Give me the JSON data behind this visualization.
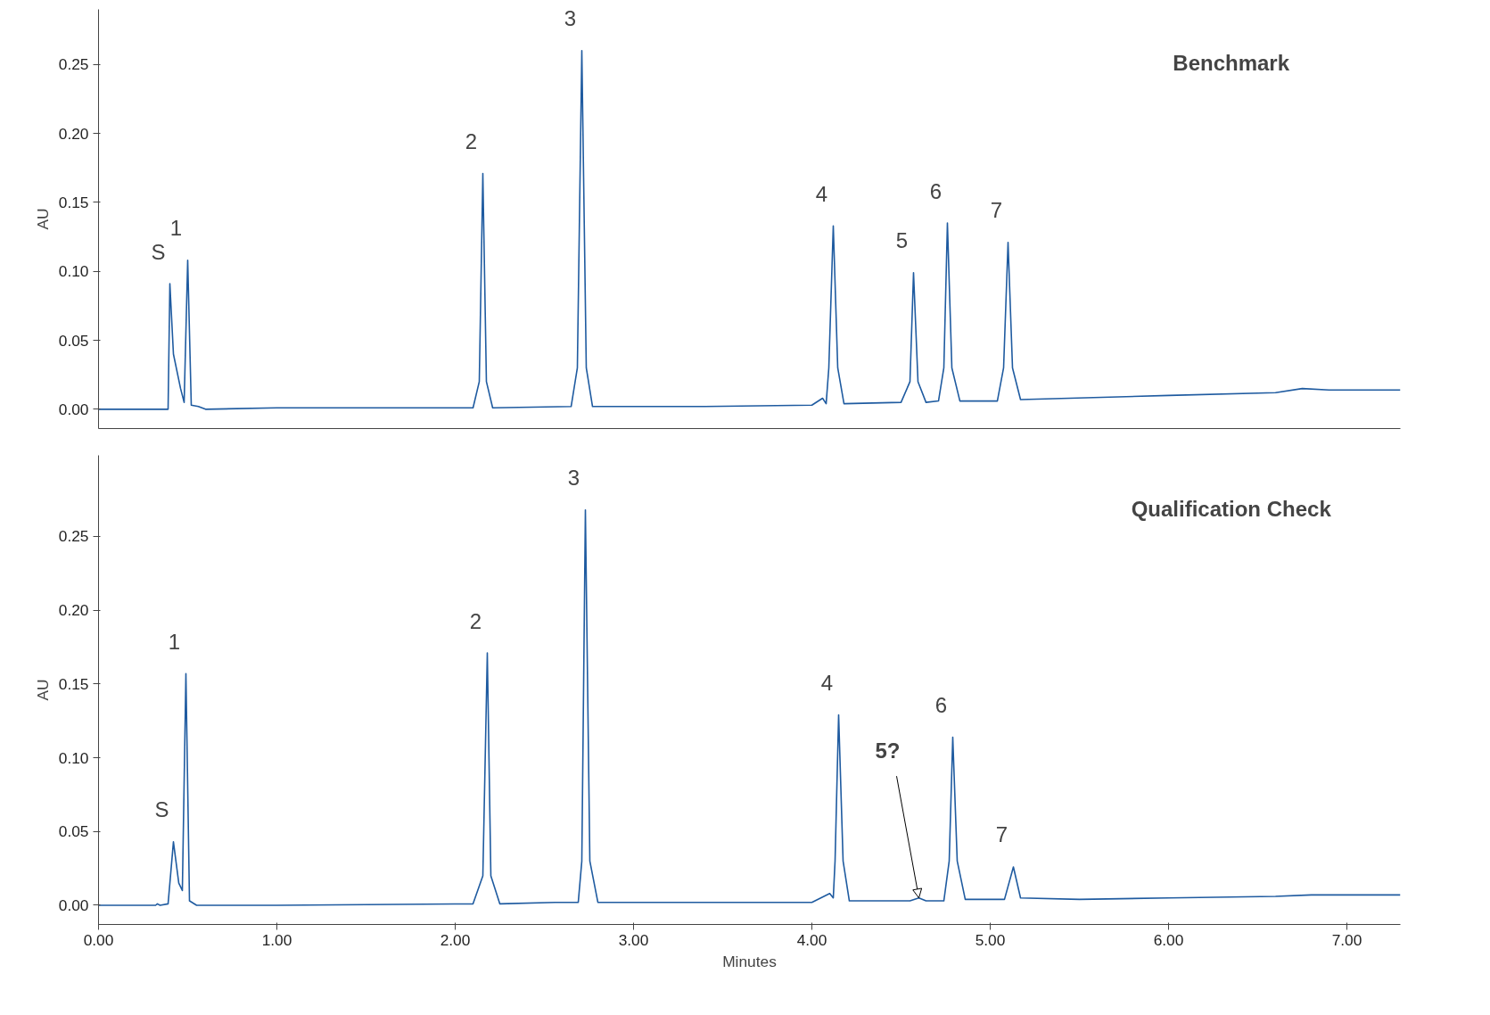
{
  "chart_data": [
    {
      "type": "line",
      "title": "Benchmark",
      "ylabel": "AU",
      "xlim": [
        0,
        7.3
      ],
      "ylim": [
        -0.014,
        0.29
      ],
      "yticks": [
        {
          "value": 0,
          "label": "0.00"
        },
        {
          "value": 0.05,
          "label": "0.05"
        },
        {
          "value": 0.1,
          "label": "0.10"
        },
        {
          "value": 0.15,
          "label": "0.15"
        },
        {
          "value": 0.2,
          "label": "0.20"
        },
        {
          "value": 0.25,
          "label": "0.25"
        }
      ],
      "tick_labels": "y",
      "grid": false,
      "series": [
        {
          "color": "#1f5ba0",
          "x": [
            0,
            0.39,
            0.4,
            0.42,
            0.46,
            0.48,
            0.5,
            0.52,
            0.56,
            0.6,
            1.0,
            2.1,
            2.135,
            2.155,
            2.175,
            2.21,
            2.65,
            2.685,
            2.71,
            2.735,
            2.77,
            3.4,
            4.0,
            4.06,
            4.08,
            4.095,
            4.12,
            4.145,
            4.18,
            4.5,
            4.55,
            4.57,
            4.595,
            4.64,
            4.71,
            4.74,
            4.76,
            4.785,
            4.83,
            5.04,
            5.075,
            5.1,
            5.125,
            5.17,
            6.0,
            6.6,
            6.75,
            6.9,
            7.3
          ],
          "values": [
            0,
            0,
            0.091,
            0.04,
            0.015,
            0.005,
            0.108,
            0.003,
            0.002,
            0,
            0.001,
            0.001,
            0.02,
            0.171,
            0.02,
            0.001,
            0.002,
            0.03,
            0.26,
            0.03,
            0.002,
            0.002,
            0.003,
            0.008,
            0.004,
            0.03,
            0.133,
            0.03,
            0.004,
            0.005,
            0.02,
            0.099,
            0.02,
            0.005,
            0.006,
            0.03,
            0.135,
            0.03,
            0.006,
            0.006,
            0.03,
            0.121,
            0.03,
            0.007,
            0.01,
            0.012,
            0.015,
            0.014,
            0.014
          ]
        }
      ],
      "annotations": [
        {
          "text": "S",
          "x": 0.4,
          "y": 0.091
        },
        {
          "text": "1",
          "x": 0.5,
          "y": 0.108
        },
        {
          "text": "2",
          "x": 2.155,
          "y": 0.171
        },
        {
          "text": "3",
          "x": 2.71,
          "y": 0.26
        },
        {
          "text": "4",
          "x": 4.12,
          "y": 0.133
        },
        {
          "text": "5",
          "x": 4.57,
          "y": 0.099
        },
        {
          "text": "6",
          "x": 4.76,
          "y": 0.135
        },
        {
          "text": "7",
          "x": 5.1,
          "y": 0.121
        }
      ]
    },
    {
      "type": "line",
      "title": "Qualification Check",
      "xlabel": "Minutes",
      "ylabel": "AU",
      "xlim": [
        0,
        7.3
      ],
      "ylim": [
        -0.013,
        0.305
      ],
      "xticks": [
        {
          "value": 0,
          "label": "0.00"
        },
        {
          "value": 1,
          "label": "1.00"
        },
        {
          "value": 2,
          "label": "2.00"
        },
        {
          "value": 3,
          "label": "3.00"
        },
        {
          "value": 4,
          "label": "4.00"
        },
        {
          "value": 5,
          "label": "5.00"
        },
        {
          "value": 6,
          "label": "6.00"
        },
        {
          "value": 7,
          "label": "7.00"
        }
      ],
      "yticks": [
        {
          "value": 0,
          "label": "0.00"
        },
        {
          "value": 0.05,
          "label": "0.05"
        },
        {
          "value": 0.1,
          "label": "0.10"
        },
        {
          "value": 0.15,
          "label": "0.15"
        },
        {
          "value": 0.2,
          "label": "0.20"
        },
        {
          "value": 0.25,
          "label": "0.25"
        }
      ],
      "grid": false,
      "series": [
        {
          "color": "#1f5ba0",
          "x": [
            0,
            0.32,
            0.33,
            0.345,
            0.39,
            0.42,
            0.45,
            0.47,
            0.49,
            0.51,
            0.55,
            1.0,
            2.1,
            2.155,
            2.18,
            2.2,
            2.25,
            2.56,
            2.69,
            2.71,
            2.73,
            2.755,
            2.8,
            3.4,
            4.0,
            4.1,
            4.12,
            4.13,
            4.15,
            4.175,
            4.21,
            4.55,
            4.6,
            4.64,
            4.74,
            4.77,
            4.79,
            4.815,
            4.86,
            5.08,
            5.13,
            5.17,
            5.5,
            6.0,
            6.6,
            6.8,
            7.3
          ],
          "values": [
            0,
            0,
            0.001,
            0,
            0.001,
            0.043,
            0.015,
            0.01,
            0.157,
            0.003,
            0,
            0,
            0.001,
            0.02,
            0.171,
            0.02,
            0.001,
            0.002,
            0.002,
            0.03,
            0.268,
            0.03,
            0.002,
            0.002,
            0.002,
            0.008,
            0.005,
            0.03,
            0.129,
            0.03,
            0.003,
            0.003,
            0.005,
            0.003,
            0.003,
            0.03,
            0.114,
            0.03,
            0.004,
            0.004,
            0.026,
            0.005,
            0.004,
            0.005,
            0.006,
            0.007,
            0.007
          ]
        }
      ],
      "annotations": [
        {
          "text": "S",
          "x": 0.42,
          "y": 0.043
        },
        {
          "text": "1",
          "x": 0.49,
          "y": 0.157
        },
        {
          "text": "2",
          "x": 2.18,
          "y": 0.171
        },
        {
          "text": "3",
          "x": 2.73,
          "y": 0.268
        },
        {
          "text": "4",
          "x": 4.15,
          "y": 0.129
        },
        {
          "text": "5?",
          "x": 4.6,
          "y": 0.005
        },
        {
          "text": "6",
          "x": 4.79,
          "y": 0.114
        },
        {
          "text": "7",
          "x": 5.13,
          "y": 0.026
        }
      ]
    }
  ]
}
